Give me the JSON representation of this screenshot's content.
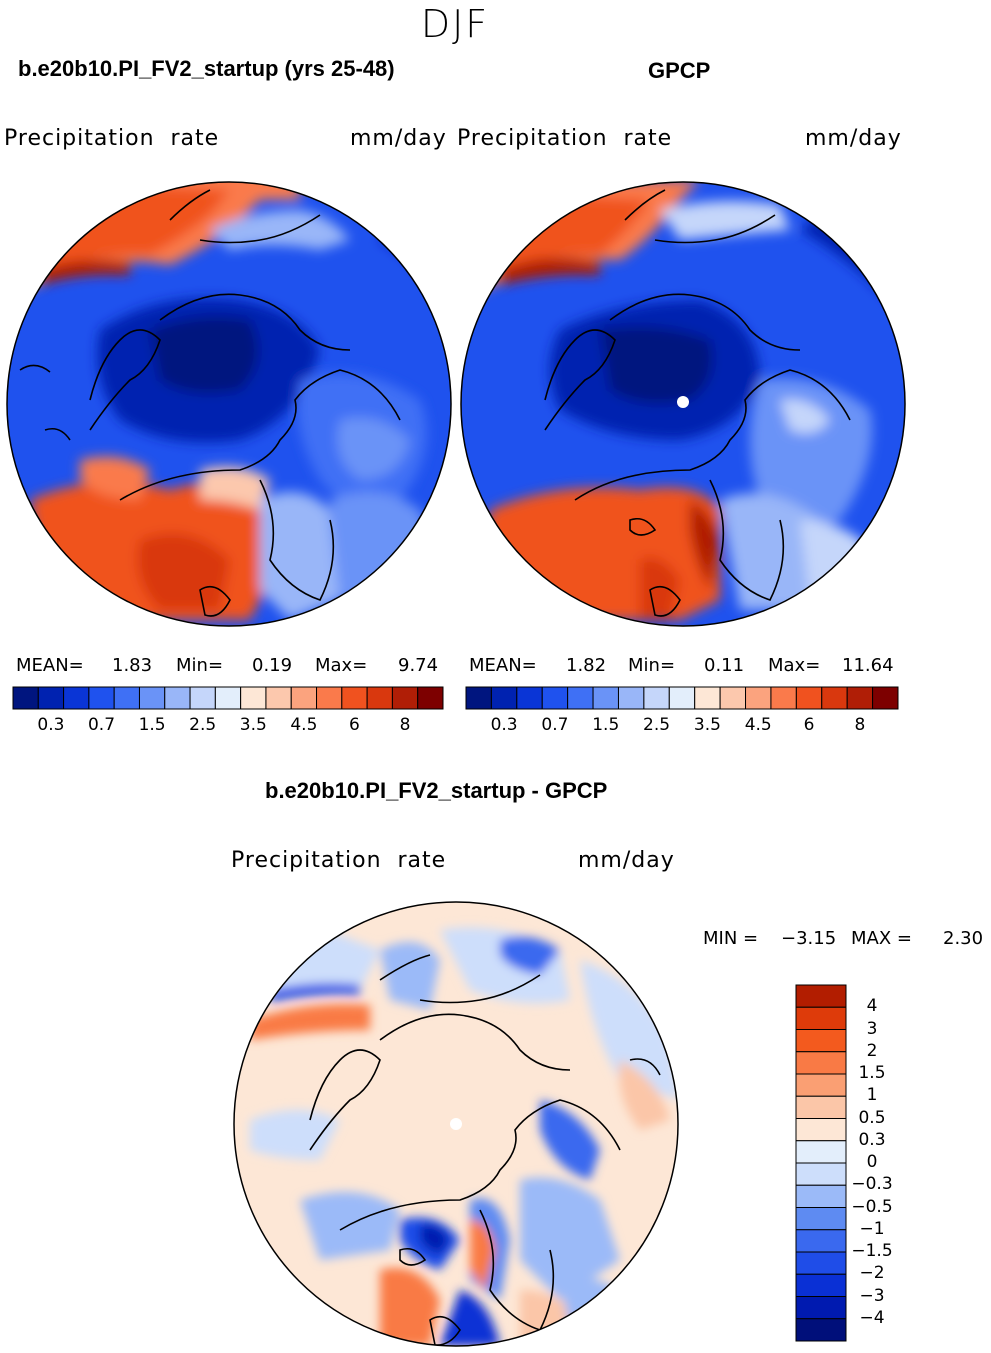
{
  "season": "DJF",
  "colors": {
    "abs_scale": [
      "#00157f",
      "#0022b0",
      "#0a35d6",
      "#1f52ee",
      "#3f70f5",
      "#6a93f7",
      "#99b6f8",
      "#c5d6fa",
      "#e3eefb",
      "#fde7d6",
      "#fcc8ad",
      "#fba37e",
      "#fa7a4b",
      "#f0521f",
      "#d9380e",
      "#b01e06",
      "#7d0000"
    ],
    "diff_scale": [
      "#000f7a",
      "#001ab0",
      "#0a30d5",
      "#1f4de8",
      "#3a69ef",
      "#5e8bf2",
      "#9bbaf8",
      "#cddefb",
      "#e3eefb",
      "#fde7d6",
      "#fbc6a8",
      "#fa9f73",
      "#f97a45",
      "#f35a1e",
      "#de3b0a",
      "#b21d00",
      "#7a0000"
    ]
  },
  "chart_data": [
    {
      "type": "heatmap",
      "name": "model",
      "title": "b.e20b10.PI_FV2_startup (yrs 25-48)",
      "variable": "Precipitation  rate",
      "units": "mm/day",
      "projection": "north polar stereographic",
      "stats": {
        "mean_label": "MEAN=",
        "mean": "1.83",
        "min_label": "Min=",
        "min": "0.19",
        "max_label": "Max=",
        "max": "9.74"
      },
      "colorbar_levels": [
        0.2,
        0.3,
        0.5,
        0.7,
        1,
        1.5,
        2,
        2.5,
        3,
        3.5,
        4,
        4.5,
        5,
        6,
        7,
        8
      ],
      "colorbar_ticks": [
        "0.3",
        "0.7",
        "1.5",
        "2.5",
        "3.5",
        "4.5",
        "6",
        "8"
      ]
    },
    {
      "type": "heatmap",
      "name": "obs",
      "title": "GPCP",
      "variable": "Precipitation  rate",
      "units": "mm/day",
      "projection": "north polar stereographic",
      "stats": {
        "mean_label": "MEAN=",
        "mean": "1.82",
        "min_label": "Min=",
        "min": "0.11",
        "max_label": "Max=",
        "max": "11.64"
      },
      "colorbar_levels": [
        0.2,
        0.3,
        0.5,
        0.7,
        1,
        1.5,
        2,
        2.5,
        3,
        3.5,
        4,
        4.5,
        5,
        6,
        7,
        8
      ],
      "colorbar_ticks": [
        "0.3",
        "0.7",
        "1.5",
        "2.5",
        "3.5",
        "4.5",
        "6",
        "8"
      ]
    },
    {
      "type": "heatmap",
      "name": "difference",
      "title": "b.e20b10.PI_FV2_startup - GPCP",
      "variable": "Precipitation  rate",
      "units": "mm/day",
      "projection": "north polar stereographic",
      "stats": {
        "min_label": "MIN =",
        "min": "−3.15",
        "max_label": "MAX =",
        "max": "2.30"
      },
      "colorbar_levels": [
        -4,
        -3,
        -2,
        -1.5,
        -1,
        -0.5,
        -0.3,
        0,
        0.3,
        0.5,
        1,
        1.5,
        2,
        3,
        4
      ],
      "colorbar_ticks": [
        "4",
        "3",
        "2",
        "1.5",
        "1",
        "0.5",
        "0.3",
        "0",
        "−0.3",
        "−0.5",
        "−1",
        "−1.5",
        "−2",
        "−3",
        "−4"
      ]
    }
  ]
}
